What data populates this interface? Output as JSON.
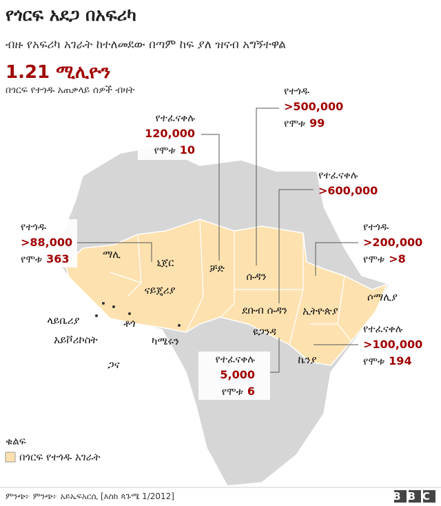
{
  "header": {
    "title": "የጎርፍ አደጋ በአፍሪካ",
    "subtitle": "ብዙ የአፍሪካ አገራት ከተለመደው በጣም ከፍ ያለ ዝናብ አግኝተዋል"
  },
  "highlight": {
    "value": "1.21 ሚሊዮን",
    "caption": "በጎርፍ የተጎዱ አጠቃላይ ሰዎች ብዛት"
  },
  "callouts": [
    {
      "lines": [
        {
          "label": "የተፈናቀሉ",
          "value": "120,000"
        },
        {
          "label": "የሞቱ",
          "value": "10"
        }
      ]
    },
    {
      "lines": [
        {
          "label": "የተጎዱ",
          "value": ">500,000"
        },
        {
          "label": "የሞቱ",
          "value": "99"
        }
      ]
    },
    {
      "lines": [
        {
          "label": "የተፈናቀሉ",
          "value": ">600,000"
        }
      ]
    },
    {
      "lines": [
        {
          "label": "የተጎዱ",
          "value": ">88,000"
        },
        {
          "label": "የሞቱ",
          "value": "363"
        }
      ]
    },
    {
      "lines": [
        {
          "label": "የተጎዱ",
          "value": ">200,000"
        },
        {
          "label": "የሞቱ",
          "value": ">8"
        }
      ]
    },
    {
      "lines": [
        {
          "label": "የተፈናቀሉ",
          "value": ">100,000"
        },
        {
          "label": "የሞቱ",
          "value": "194"
        }
      ]
    },
    {
      "lines": [
        {
          "label": "የተፈናቀሉ",
          "value": "5,000"
        },
        {
          "label": "የሞቱ",
          "value": "6"
        }
      ]
    }
  ],
  "countries": [
    "ማሊ",
    "ኒጀር",
    "ቻድ",
    "ሱዳን",
    "ናይጄሪያ",
    "ደቡብ ሱዳን",
    "ኢትዮጵያ",
    "ሶማሊያ",
    "ላይቤሪያ",
    "ቶጎ",
    "ካሜሩን",
    "አይቮሪኮስት",
    "ጋና",
    "ዩጋንዳ",
    "ኬንያ"
  ],
  "legend": {
    "title": "ቁልፍ",
    "item": "በጎርፍ የተጎዱ አገራት"
  },
  "footer": {
    "source": "ምንጭ፦ ምንጭ፦ አይኤፍአርሲ [እስከ ጳጉሜ 1/2012]",
    "logo": "BBC"
  }
}
